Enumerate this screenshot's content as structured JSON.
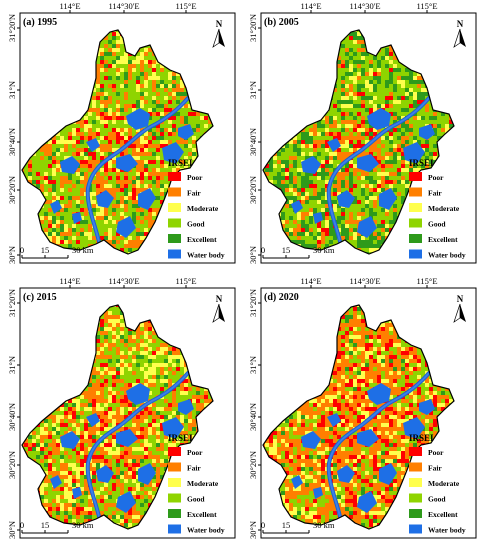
{
  "axes": {
    "lon_labels": [
      "114°E",
      "114°30'E",
      "115°E"
    ],
    "lat_labels": [
      "31°20'N",
      "31°N",
      "30°40'N",
      "30°20'N",
      "30°N"
    ]
  },
  "legend": {
    "title": "IRSEI",
    "items": [
      {
        "label": "Poor",
        "color": "#ff0000"
      },
      {
        "label": "Fair",
        "color": "#ff7f00"
      },
      {
        "label": "Moderate",
        "color": "#ffff4d"
      },
      {
        "label": "Good",
        "color": "#8fd400"
      },
      {
        "label": "Excellent",
        "color": "#2e9a1b"
      },
      {
        "label": "Water body",
        "color": "#1e6fe6"
      }
    ]
  },
  "scale_bar": {
    "labels": [
      "0",
      "15",
      "30 km"
    ]
  },
  "north_arrow": {
    "label": "N"
  },
  "panels": [
    {
      "title": "(a) 1995",
      "mix": {
        "poor": 0.06,
        "fair": 0.22,
        "moderate": 0.16,
        "good": 0.46,
        "excellent": 0.1
      }
    },
    {
      "title": "(b) 2005",
      "mix": {
        "poor": 0.04,
        "fair": 0.12,
        "moderate": 0.12,
        "good": 0.42,
        "excellent": 0.3
      }
    },
    {
      "title": "(c) 2015",
      "mix": {
        "poor": 0.08,
        "fair": 0.28,
        "moderate": 0.22,
        "good": 0.36,
        "excellent": 0.06
      }
    },
    {
      "title": "(d) 2020",
      "mix": {
        "poor": 0.12,
        "fair": 0.4,
        "moderate": 0.18,
        "good": 0.26,
        "excellent": 0.04
      }
    }
  ]
}
